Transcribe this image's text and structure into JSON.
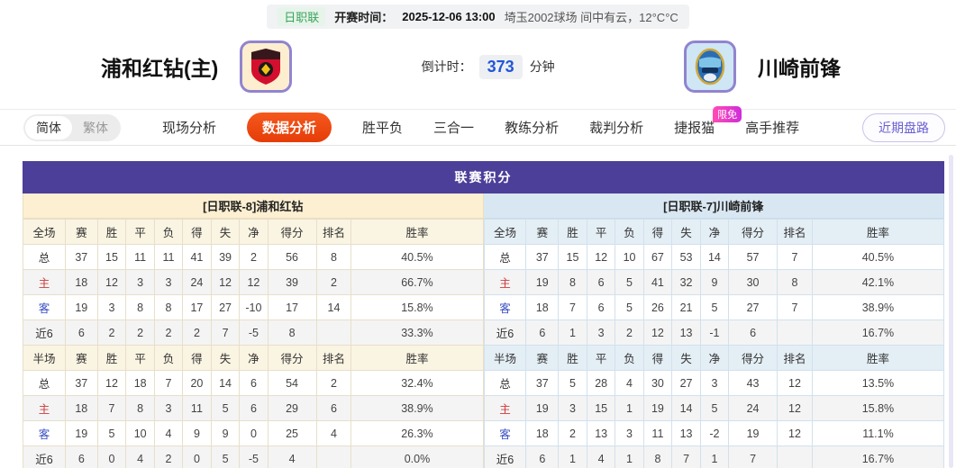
{
  "top_bar": {
    "league_badge": "日职联",
    "kickoff_label": "开赛时间：",
    "kickoff_time": "2025-12-06 13:00",
    "venue_weather": "埼玉2002球场  间中有云，12°C°C"
  },
  "header": {
    "home_team_name": "浦和红钻(主)",
    "away_team_name": "川崎前锋",
    "countdown_label": "倒计时：",
    "countdown_value": "373",
    "countdown_unit": "分钟"
  },
  "nav": {
    "lang_simplified": "简体",
    "lang_traditional": "繁体",
    "tabs": [
      {
        "label": "现场分析",
        "active": false
      },
      {
        "label": "数据分析",
        "active": true
      },
      {
        "label": "胜平负",
        "active": false
      },
      {
        "label": "三合一",
        "active": false
      },
      {
        "label": "教练分析",
        "active": false
      },
      {
        "label": "裁判分析",
        "active": false
      },
      {
        "label": "捷报猫",
        "active": false,
        "badge": "限免"
      },
      {
        "label": "高手推荐",
        "active": false
      }
    ],
    "recent_button_label": "近期盘路"
  },
  "standings": {
    "title": "联赛积分",
    "columns": [
      "赛",
      "胜",
      "平",
      "负",
      "得",
      "失",
      "净",
      "得分",
      "排名",
      "胜率"
    ],
    "teams": [
      {
        "side": "home",
        "header": "[日职联-8]浦和红钻",
        "sections": [
          {
            "label": "全场",
            "rows": [
              {
                "label": "总",
                "type": "total",
                "values": [
                  "37",
                  "15",
                  "11",
                  "11",
                  "41",
                  "39",
                  "2",
                  "56",
                  "8",
                  "40.5%"
                ]
              },
              {
                "label": "主",
                "type": "home-r",
                "values": [
                  "18",
                  "12",
                  "3",
                  "3",
                  "24",
                  "12",
                  "12",
                  "39",
                  "2",
                  "66.7%"
                ]
              },
              {
                "label": "客",
                "type": "away-r",
                "values": [
                  "19",
                  "3",
                  "8",
                  "8",
                  "17",
                  "27",
                  "-10",
                  "17",
                  "14",
                  "15.8%"
                ]
              },
              {
                "label": "近6",
                "type": "recent",
                "values": [
                  "6",
                  "2",
                  "2",
                  "2",
                  "2",
                  "7",
                  "-5",
                  "8",
                  "",
                  "33.3%"
                ]
              }
            ]
          },
          {
            "label": "半场",
            "rows": [
              {
                "label": "总",
                "type": "total",
                "values": [
                  "37",
                  "12",
                  "18",
                  "7",
                  "20",
                  "14",
                  "6",
                  "54",
                  "2",
                  "32.4%"
                ]
              },
              {
                "label": "主",
                "type": "home-r",
                "values": [
                  "18",
                  "7",
                  "8",
                  "3",
                  "11",
                  "5",
                  "6",
                  "29",
                  "6",
                  "38.9%"
                ]
              },
              {
                "label": "客",
                "type": "away-r",
                "values": [
                  "19",
                  "5",
                  "10",
                  "4",
                  "9",
                  "9",
                  "0",
                  "25",
                  "4",
                  "26.3%"
                ]
              },
              {
                "label": "近6",
                "type": "recent",
                "values": [
                  "6",
                  "0",
                  "4",
                  "2",
                  "0",
                  "5",
                  "-5",
                  "4",
                  "",
                  "0.0%"
                ]
              }
            ]
          }
        ]
      },
      {
        "side": "away",
        "header": "[日职联-7]川崎前锋",
        "sections": [
          {
            "label": "全场",
            "rows": [
              {
                "label": "总",
                "type": "total",
                "values": [
                  "37",
                  "15",
                  "12",
                  "10",
                  "67",
                  "53",
                  "14",
                  "57",
                  "7",
                  "40.5%"
                ]
              },
              {
                "label": "主",
                "type": "home-r",
                "values": [
                  "19",
                  "8",
                  "6",
                  "5",
                  "41",
                  "32",
                  "9",
                  "30",
                  "8",
                  "42.1%"
                ]
              },
              {
                "label": "客",
                "type": "away-r",
                "values": [
                  "18",
                  "7",
                  "6",
                  "5",
                  "26",
                  "21",
                  "5",
                  "27",
                  "7",
                  "38.9%"
                ]
              },
              {
                "label": "近6",
                "type": "recent",
                "values": [
                  "6",
                  "1",
                  "3",
                  "2",
                  "12",
                  "13",
                  "-1",
                  "6",
                  "",
                  "16.7%"
                ]
              }
            ]
          },
          {
            "label": "半场",
            "rows": [
              {
                "label": "总",
                "type": "total",
                "values": [
                  "37",
                  "5",
                  "28",
                  "4",
                  "30",
                  "27",
                  "3",
                  "43",
                  "12",
                  "13.5%"
                ]
              },
              {
                "label": "主",
                "type": "home-r",
                "values": [
                  "19",
                  "3",
                  "15",
                  "1",
                  "19",
                  "14",
                  "5",
                  "24",
                  "12",
                  "15.8%"
                ]
              },
              {
                "label": "客",
                "type": "away-r",
                "values": [
                  "18",
                  "2",
                  "13",
                  "3",
                  "11",
                  "13",
                  "-2",
                  "19",
                  "12",
                  "11.1%"
                ]
              },
              {
                "label": "近6",
                "type": "recent",
                "values": [
                  "6",
                  "1",
                  "4",
                  "1",
                  "8",
                  "7",
                  "1",
                  "7",
                  "",
                  "16.7%"
                ]
              }
            ]
          }
        ]
      }
    ]
  },
  "colors": {
    "title_purple": "#4c3f99",
    "home_cream": "#fcefd2",
    "away_blue": "#d9e7f2",
    "active_tab_orange": "#e63c08",
    "badge_magenta": "#d431dd",
    "league_green": "#3aa35c",
    "countdown_blue": "#2157d6",
    "home_row_red": "#cc3b3b",
    "away_row_blue": "#3a4fc4"
  }
}
